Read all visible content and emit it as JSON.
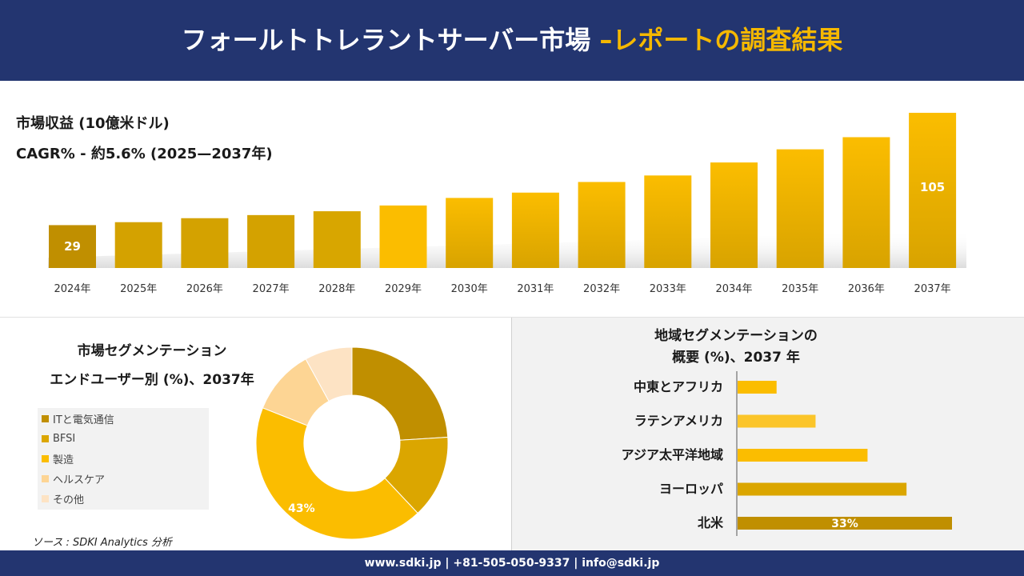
{
  "header": {
    "title_main": "フォールトトレラントサーバー市場 ",
    "title_accent": "–レポートの調査結果"
  },
  "revenue": {
    "label": "市場収益 (10億米ドル)",
    "cagr": "CAGR% - 約5.6% (2025—2037年)"
  },
  "segment": {
    "title_line1": "市場セグメンテーション",
    "title_line2": "エンドユーザー別 (%)、2037年"
  },
  "region": {
    "title_line1": "地域セグメンテーションの",
    "title_line2": "概要 (%)、2037 年"
  },
  "source": "ソース : SDKI Analytics 分析",
  "footer": "www.sdki.jp | +81-505-050-9337 | info@sdki.jp",
  "colors": {
    "navy": "#233570",
    "gold_dark": "#c08f00",
    "gold": "#d4a200",
    "gold_bright": "#fbbd00",
    "light_peach": "#fdd594",
    "pale_peach": "#fde3c4",
    "accent": "#f5b800"
  },
  "chart_data": [
    {
      "type": "bar",
      "categories": [
        "2024年",
        "2025年",
        "2026年",
        "2027年",
        "2028年",
        "2029年",
        "2030年",
        "2031年",
        "2032年",
        "2033年",
        "2034年",
        "2035年",
        "2036年",
        "2037年"
      ],
      "values": [
        29,
        31,
        33.7,
        35.8,
        38.4,
        42.3,
        47.4,
        51,
        58.2,
        62.6,
        71.4,
        80.3,
        88.5,
        105
      ],
      "data_labels": [
        {
          "index": 0,
          "text": "29"
        },
        {
          "index": 13,
          "text": "105"
        }
      ],
      "ylim": [
        0,
        105
      ]
    },
    {
      "type": "pie",
      "style": "donut",
      "labels": [
        "ITと電気通信",
        "BFSI",
        "製造",
        "ヘルスケア",
        "その他"
      ],
      "values": [
        24,
        14,
        43,
        11,
        8
      ],
      "colors": [
        "#c08f00",
        "#dba600",
        "#fbbd00",
        "#fdd594",
        "#fde3c4"
      ],
      "data_labels": [
        {
          "index": 2,
          "text": "43%"
        }
      ]
    },
    {
      "type": "bar",
      "orientation": "horizontal",
      "categories": [
        "中東とアフリカ",
        "ラテンアメリカ",
        "アジア太平洋地域",
        "ヨーロッパ",
        "北米"
      ],
      "values": [
        6,
        12,
        20,
        26,
        33
      ],
      "colors": [
        "#fbbd00",
        "#fbc52a",
        "#fbbd00",
        "#dba600",
        "#c08f00"
      ],
      "data_labels": [
        {
          "index": 4,
          "text": "33%"
        }
      ]
    }
  ]
}
